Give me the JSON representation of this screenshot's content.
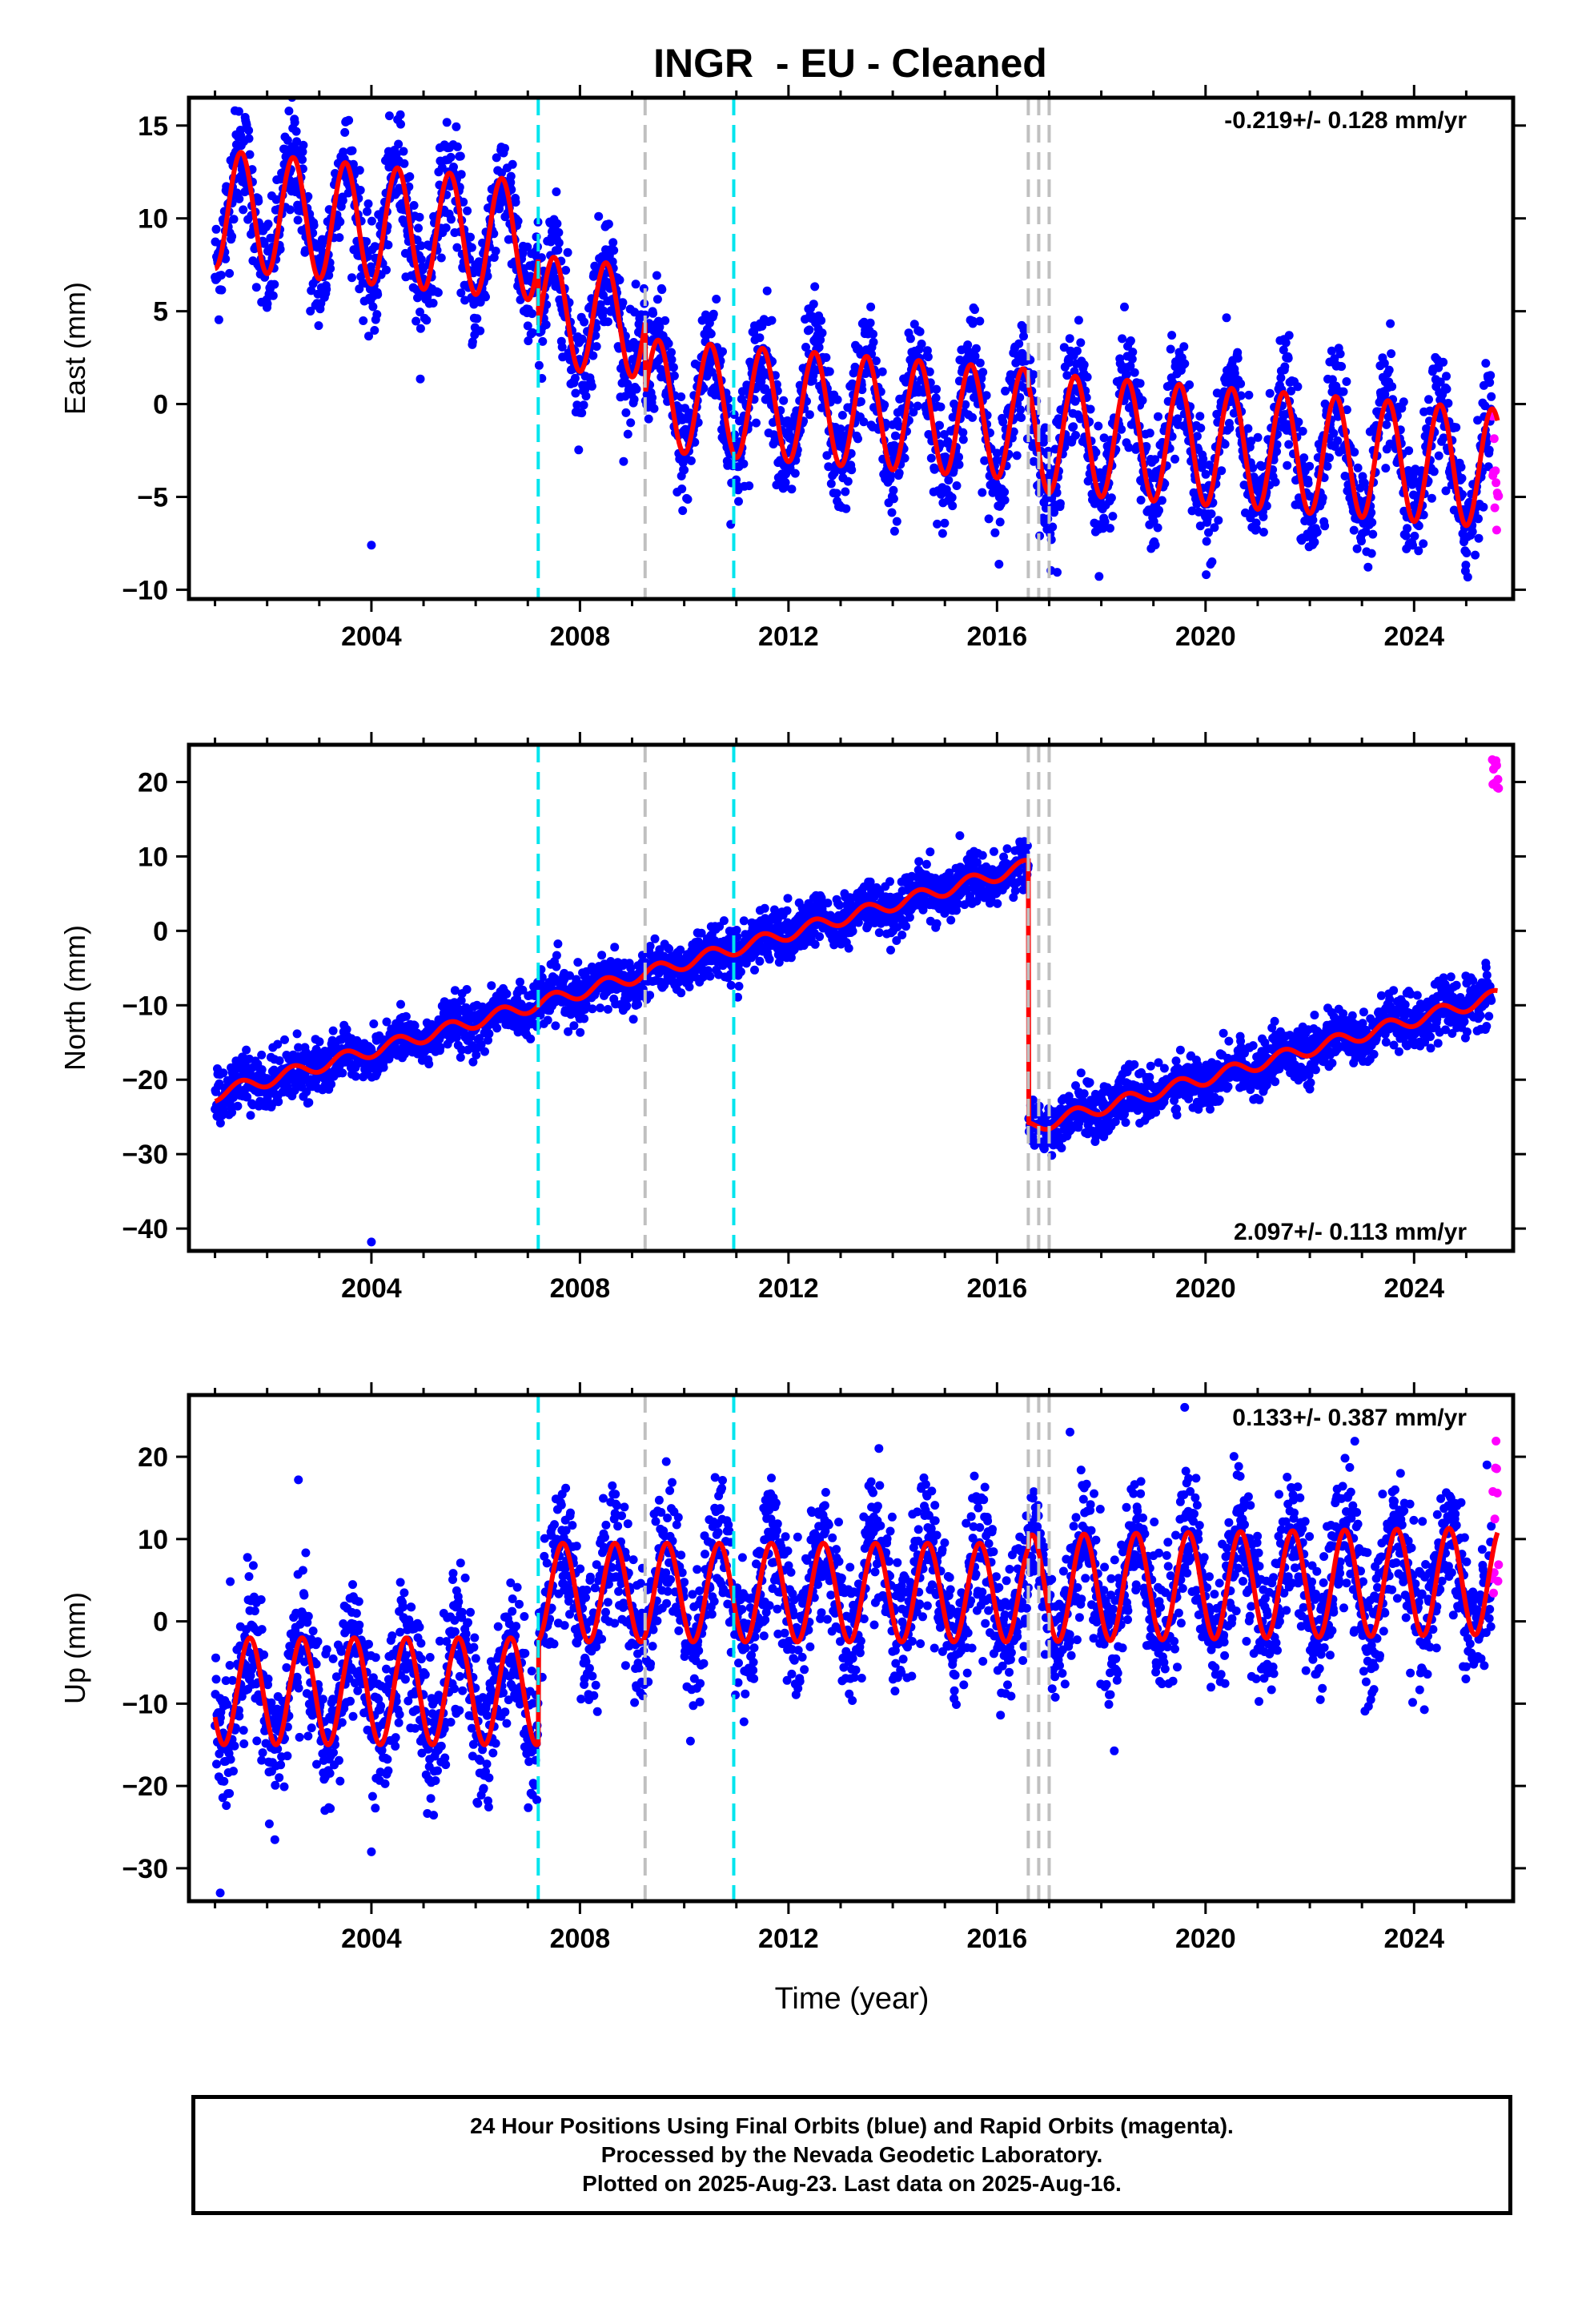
{
  "title": "INGR  - EU - Cleaned",
  "xlabel": "Time (year)",
  "colors": {
    "final_orbits": "#0000ff",
    "rapid_orbits": "#ff00ff",
    "model": "#ff0000",
    "equipment_change": "#00e5ee",
    "earthquake": "#c0c0c0",
    "frame": "#000000"
  },
  "caption": [
    "24 Hour Positions Using Final Orbits (blue) and Rapid Orbits (magenta).",
    "Processed by the Nevada Geodetic Laboratory.",
    "Plotted on 2025-Aug-23. Last data on 2025-Aug-16."
  ],
  "chart_data": [
    {
      "type": "scatter",
      "component": "East",
      "ylabel": "East (mm)",
      "xlim": [
        2000.5,
        2025.9
      ],
      "ylim": [
        -10.5,
        16.5
      ],
      "xticks": [
        2004,
        2008,
        2012,
        2016,
        2020,
        2024
      ],
      "yticks": [
        -10,
        -5,
        0,
        5,
        10,
        15
      ],
      "velocity_label": "-0.219+/- 0.128 mm/yr",
      "velocity_position": "top-right",
      "equipment_changes": [
        2007.2,
        2010.95
      ],
      "earthquakes": [
        2009.25,
        2016.6,
        2016.8,
        2017.0
      ],
      "rapid_range": [
        -7,
        0
      ],
      "outliers": [
        [
          2004.0,
          -7.6
        ]
      ],
      "model": {
        "start": 2001.0,
        "end": 2025.6,
        "segments": [
          {
            "from": 2001.0,
            "to": 2007.2,
            "offset": 10.5,
            "rate": -0.28,
            "amplitude": 3.2,
            "phase": 2001.25
          },
          {
            "from": 2007.2,
            "to": 2009.25,
            "offset": 5.0,
            "rate": -0.3,
            "amplitude": 3.0,
            "phase": 2001.25
          },
          {
            "from": 2009.25,
            "to": 2016.6,
            "offset": 0.5,
            "rate": -0.22,
            "amplitude": 3.0,
            "phase": 2001.25
          },
          {
            "from": 2016.6,
            "to": 2025.6,
            "offset": -1.5,
            "rate": -0.22,
            "amplitude": 3.2,
            "phase": 2001.25
          }
        ],
        "noise": 1.5
      }
    },
    {
      "type": "scatter",
      "component": "North",
      "ylabel": "North (mm)",
      "xlim": [
        2000.5,
        2025.9
      ],
      "ylim": [
        -43,
        25
      ],
      "xticks": [
        2004,
        2008,
        2012,
        2016,
        2020,
        2024
      ],
      "yticks": [
        -40,
        -30,
        -20,
        -10,
        0,
        10,
        20
      ],
      "velocity_label": "2.097+/- 0.113 mm/yr",
      "velocity_position": "bottom-right",
      "equipment_changes": [
        2007.2,
        2010.95
      ],
      "earthquakes": [
        2009.25,
        2016.6,
        2016.8,
        2017.0
      ],
      "rapid_range": [
        19,
        23
      ],
      "outliers": [
        [
          2004.0,
          -41.8
        ],
        [
          2007.7,
          -6.5
        ]
      ],
      "model": {
        "start": 2001.0,
        "end": 2025.6,
        "segments": [
          {
            "from": 2001.0,
            "to": 2016.6,
            "offset": -22.0,
            "rate": 1.97,
            "amplitude": 0.9,
            "phase": 2001.25
          },
          {
            "from": 2016.6,
            "to": 2025.6,
            "offset": -26.5,
            "rate": 1.97,
            "amplitude": 0.9,
            "phase": 2001.25
          }
        ],
        "noise": 1.7
      }
    },
    {
      "type": "scatter",
      "component": "Up",
      "ylabel": "Up (mm)",
      "xlim": [
        2000.5,
        2025.9
      ],
      "ylim": [
        -34,
        27.5
      ],
      "xticks": [
        2004,
        2008,
        2012,
        2016,
        2020,
        2024
      ],
      "yticks": [
        -30,
        -20,
        -10,
        0,
        10,
        20
      ],
      "velocity_label": "0.133+/- 0.387 mm/yr",
      "velocity_position": "top-right",
      "equipment_changes": [
        2007.2,
        2010.95
      ],
      "earthquakes": [
        2009.25,
        2016.6,
        2016.8,
        2017.0
      ],
      "rapid_range": [
        3,
        22
      ],
      "outliers": [
        [
          2001.1,
          -33
        ],
        [
          2002.6,
          17.2
        ],
        [
          2017.4,
          23
        ],
        [
          2019.6,
          26
        ],
        [
          2004.0,
          -28
        ]
      ],
      "model": {
        "start": 2001.0,
        "end": 2025.6,
        "segments": [
          {
            "from": 2001.0,
            "to": 2007.2,
            "offset": -8.5,
            "rate": 0.0,
            "amplitude": 6.5,
            "phase": 2001.42
          },
          {
            "from": 2007.2,
            "to": 2016.6,
            "offset": 3.5,
            "rate": 0.0,
            "amplitude": 6.0,
            "phase": 2001.42
          },
          {
            "from": 2016.6,
            "to": 2025.6,
            "offset": 4.0,
            "rate": 0.1,
            "amplitude": 6.5,
            "phase": 2001.42
          }
        ],
        "noise": 4.2
      }
    }
  ]
}
